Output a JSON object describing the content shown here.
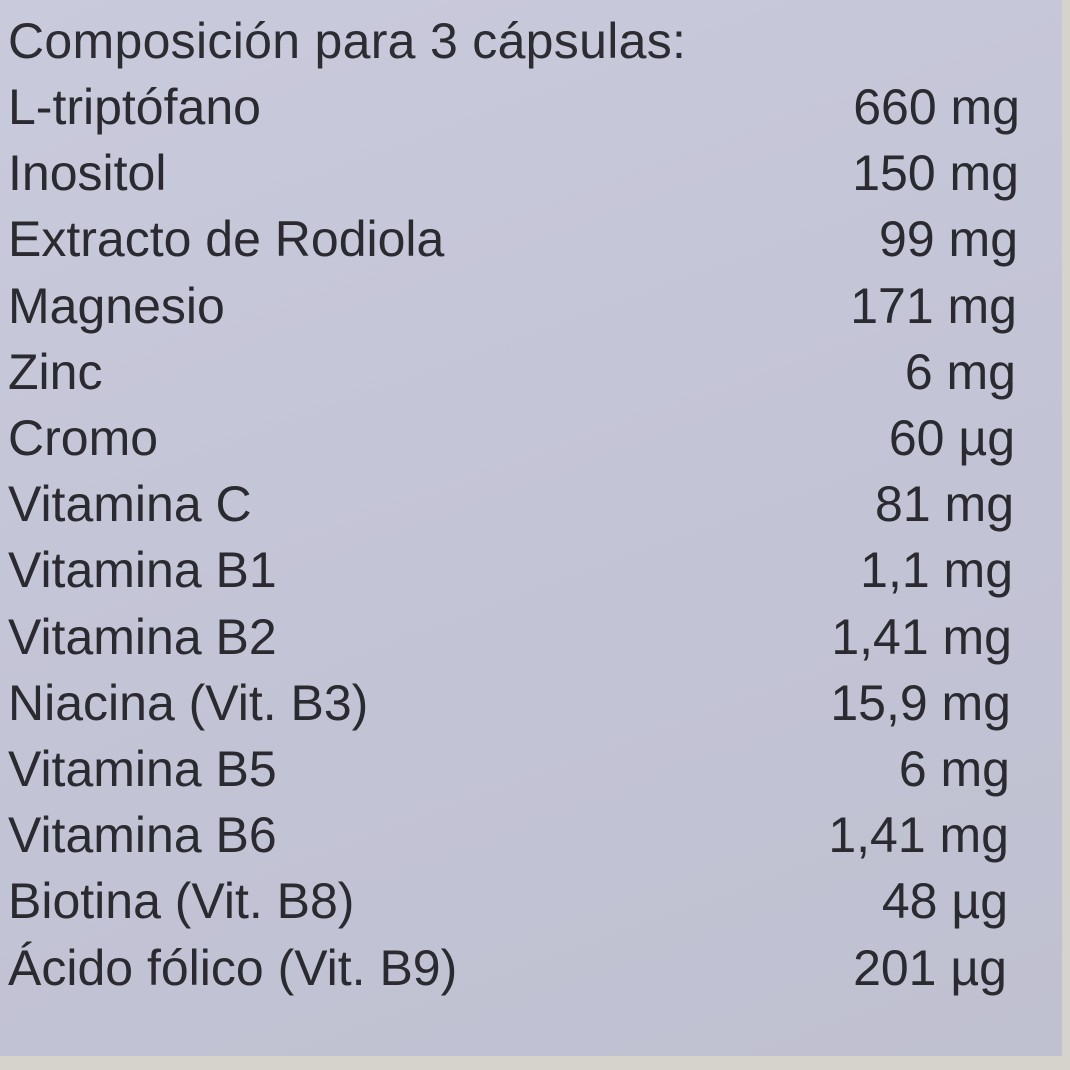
{
  "title": "Composición para 3 cápsulas:",
  "rows": [
    {
      "name": "L-triptófano",
      "amount": "660 mg"
    },
    {
      "name": "Inositol",
      "amount": "150 mg"
    },
    {
      "name": "Extracto de Rodiola",
      "amount": "99 mg"
    },
    {
      "name": "Magnesio",
      "amount": "171 mg"
    },
    {
      "name": "Zinc",
      "amount": "6 mg"
    },
    {
      "name": "Cromo",
      "amount": "60 µg"
    },
    {
      "name": "Vitamina C",
      "amount": "81 mg"
    },
    {
      "name": "Vitamina B1",
      "amount": "1,1 mg"
    },
    {
      "name": "Vitamina B2",
      "amount": "1,41 mg"
    },
    {
      "name": "Niacina (Vit. B3)",
      "amount": "15,9 mg"
    },
    {
      "name": "Vitamina B5",
      "amount": "6 mg"
    },
    {
      "name": "Vitamina B6",
      "amount": "1,41 mg"
    },
    {
      "name": "Biotina (Vit. B8)",
      "amount": "48 µg"
    },
    {
      "name": "Ácido fólico (Vit. B9)",
      "amount": "201 µg"
    }
  ]
}
